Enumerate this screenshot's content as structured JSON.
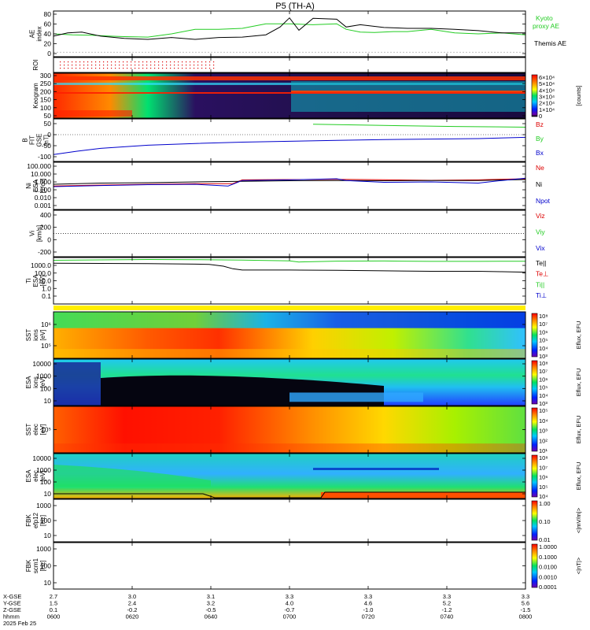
{
  "title": "P5 (TH-A)",
  "colors": {
    "green": "#22cc22",
    "red": "#dd0000",
    "blue": "#0000cc",
    "black": "#000000",
    "yellow": "#ffee00"
  },
  "chart_data": [
    {
      "type": "line",
      "id": "ae",
      "ylabel": "AE index",
      "ylim": [
        -10,
        90
      ],
      "yticks": [
        "80",
        "60",
        "40",
        "20",
        "0"
      ],
      "legend": [
        "Kyoto",
        "proxy AE",
        "Themis AE"
      ],
      "series": [
        {
          "name": "Kyoto proxy AE",
          "color": "#22cc22",
          "x": [
            0,
            0.04,
            0.08,
            0.12,
            0.15,
            0.2,
            0.25,
            0.3,
            0.35,
            0.4,
            0.45,
            0.5,
            0.55,
            0.6,
            0.62,
            0.65,
            0.68,
            0.72,
            0.75,
            0.8,
            0.85,
            0.9,
            0.95,
            1.0
          ],
          "y": [
            40,
            38,
            37,
            35,
            34,
            33,
            40,
            50,
            50,
            52,
            62,
            62,
            60,
            62,
            50,
            44,
            43,
            45,
            45,
            50,
            42,
            40,
            42,
            38
          ]
        },
        {
          "name": "Themis AE",
          "color": "#000000",
          "x": [
            0,
            0.03,
            0.06,
            0.1,
            0.15,
            0.2,
            0.25,
            0.3,
            0.35,
            0.4,
            0.45,
            0.48,
            0.5,
            0.52,
            0.55,
            0.6,
            0.62,
            0.65,
            0.7,
            0.75,
            0.8,
            0.85,
            0.9,
            0.95,
            1.0
          ],
          "y": [
            35,
            42,
            44,
            35,
            30,
            28,
            32,
            28,
            32,
            33,
            38,
            55,
            75,
            48,
            74,
            72,
            55,
            60,
            54,
            52,
            52,
            50,
            47,
            42,
            42
          ]
        }
      ]
    },
    {
      "type": "line",
      "id": "roi",
      "ylabel": "ROI"
    },
    {
      "type": "heatmap",
      "id": "keogram",
      "ylabel": "Keogram",
      "yticks": [
        "300",
        "250",
        "200",
        "150",
        "100",
        "50"
      ],
      "colorbar_ticks": [
        "6×10⁴",
        "5×10⁴",
        "4×10⁴",
        "3×10⁴",
        "2×10⁴",
        "1×10⁴",
        "0"
      ],
      "colorbar_label": "[counts]"
    },
    {
      "type": "line",
      "id": "bfield",
      "ylabel": "B FIT GSE [nT]",
      "yticks": [
        "50",
        "0",
        "-50",
        "-100"
      ],
      "legend": [
        "Bz",
        "By",
        "Bx"
      ],
      "series": [
        {
          "name": "Bz",
          "color": "#dd0000"
        },
        {
          "name": "By",
          "color": "#22cc22",
          "x": [
            0.55,
            0.65,
            0.75,
            0.85,
            1.0
          ],
          "y": [
            47,
            44,
            40,
            37,
            34
          ]
        },
        {
          "name": "Bx",
          "color": "#0000cc",
          "x": [
            0,
            0.05,
            0.1,
            0.2,
            0.3,
            0.4,
            0.5,
            0.6,
            0.7,
            0.8,
            0.9,
            1.0
          ],
          "y": [
            -90,
            -75,
            -62,
            -48,
            -40,
            -34,
            -30,
            -26,
            -22,
            -20,
            -18,
            -12
          ]
        }
      ]
    },
    {
      "type": "line",
      "id": "density",
      "ylabel": "Ni ESA [1/cc]",
      "yticks": [
        "100.000",
        "10.000",
        "1.000",
        "0.100",
        "0.010",
        "0.001"
      ],
      "legend": [
        "Ne",
        "Ni",
        "Npot"
      ],
      "series": [
        {
          "name": "Ne",
          "color": "#dd0000",
          "x": [
            0,
            0.1,
            0.2,
            0.3,
            0.38,
            0.4,
            0.5,
            0.6,
            0.7,
            0.8,
            0.9,
            0.95,
            1.0
          ],
          "y": [
            0.3,
            0.4,
            0.5,
            0.6,
            0.6,
            1.8,
            2.0,
            2.1,
            1.9,
            1.6,
            1.8,
            2.2,
            2.5
          ]
        },
        {
          "name": "Ni",
          "color": "#000000",
          "x": [
            0,
            0.1,
            0.2,
            0.3,
            0.4,
            0.5,
            0.6,
            0.7,
            0.8,
            0.9,
            1.0
          ],
          "y": [
            0.5,
            0.7,
            0.8,
            1.0,
            1.2,
            1.4,
            1.5,
            1.4,
            1.5,
            1.5,
            2.0
          ]
        },
        {
          "name": "Npot",
          "color": "#0000cc",
          "x": [
            0,
            0.1,
            0.2,
            0.3,
            0.37,
            0.4,
            0.5,
            0.6,
            0.62,
            0.7,
            0.8,
            0.9,
            0.95,
            1.0
          ],
          "y": [
            0.25,
            0.35,
            0.45,
            0.5,
            0.3,
            1.5,
            1.8,
            2.5,
            1.5,
            0.9,
            1.0,
            0.7,
            1.5,
            3.0
          ]
        }
      ]
    },
    {
      "type": "line",
      "id": "velocity",
      "ylabel": "Vi [km/s]",
      "yticks": [
        "400",
        "200",
        "0",
        "-200"
      ],
      "legend": [
        "Viz",
        "Viy",
        "Vix"
      ],
      "series": [
        {
          "name": "Viz",
          "color": "#dd0000"
        },
        {
          "name": "Viy",
          "color": "#22cc22"
        },
        {
          "name": "Vix",
          "color": "#0000cc"
        }
      ]
    },
    {
      "type": "line",
      "id": "temperature",
      "ylabel": "Ti ESA [eV]",
      "yticks": [
        "1000.0",
        "100.0",
        "10.0",
        "1.0",
        "0.1"
      ],
      "legend": [
        "Te||",
        "Te⊥",
        "Ti||",
        "Ti⊥"
      ],
      "series": [
        {
          "name": "Te||",
          "color": "#000000",
          "x": [
            0,
            0.2,
            0.3,
            0.33,
            0.36,
            0.38,
            0.4,
            0.5,
            0.6,
            0.7,
            0.8,
            0.9,
            0.95,
            1.0
          ],
          "y": [
            1800,
            1600,
            1400,
            1300,
            800,
            400,
            280,
            280,
            260,
            230,
            200,
            200,
            180,
            160
          ]
        },
        {
          "name": "Ti||",
          "color": "#22cc22",
          "x": [
            0,
            0.1,
            0.2,
            0.3,
            0.4,
            0.5,
            0.52,
            0.6,
            0.7,
            0.8,
            0.9,
            1.0
          ],
          "y": [
            4000,
            4500,
            5000,
            4800,
            4300,
            3500,
            2500,
            3200,
            3300,
            3000,
            3000,
            3100
          ]
        }
      ]
    },
    {
      "type": "heatmap",
      "id": "sst-ion",
      "ylabel": "SST ions [eV]",
      "yticks": [
        "10⁶",
        "10⁵"
      ],
      "colorbar_ticks": [
        "10⁸",
        "10⁷",
        "10⁶",
        "10⁵",
        "10⁴",
        "10³"
      ],
      "colorbar_label": "Eflux, EFU"
    },
    {
      "type": "heatmap",
      "id": "esa-ion",
      "ylabel": "ESA ions [eV]",
      "yticks": [
        "10000",
        "1000",
        "100",
        "10"
      ],
      "colorbar_ticks": [
        "10⁸",
        "10⁷",
        "10⁶",
        "10⁵",
        "10⁴",
        "10³"
      ],
      "colorbar_label": "Eflux, EFU"
    },
    {
      "type": "heatmap",
      "id": "sst-elec",
      "ylabel": "SST elec [eV]",
      "yticks": [
        "10⁵"
      ],
      "colorbar_ticks": [
        "10⁵",
        "10⁴",
        "10³",
        "10²",
        "10¹"
      ],
      "colorbar_label": "Eflux, EFU"
    },
    {
      "type": "heatmap",
      "id": "esa-elec",
      "ylabel": "ESA elec [eV]",
      "yticks": [
        "10000",
        "1000",
        "100",
        "10"
      ],
      "colorbar_ticks": [
        "10⁸",
        "10⁷",
        "10⁶",
        "10⁵",
        "10⁴"
      ],
      "colorbar_label": "Eflux, EFU"
    },
    {
      "type": "heatmap",
      "id": "fbk-e",
      "ylabel": "FBK efp12 [Hz]",
      "yticks": [
        "1000",
        "100",
        "10"
      ],
      "colorbar_ticks": [
        "1.00",
        "0.10",
        "0.01"
      ],
      "colorbar_label": "<|mV/m|>"
    },
    {
      "type": "heatmap",
      "id": "fbk-b",
      "ylabel": "FBK scm1 [Hz]",
      "yticks": [
        "1000",
        "100",
        "10"
      ],
      "colorbar_ticks": [
        "1.0000",
        "0.1000",
        "0.0100",
        "0.0010",
        "0.0001"
      ],
      "colorbar_label": "<|nT|>"
    }
  ],
  "time_axis": {
    "row_labels": [
      "X-GSE",
      "Y-GSE",
      "Z-GSE",
      "hhmm",
      "2025 Feb 25"
    ],
    "columns": [
      {
        "x": "2.7",
        "y": "1.5",
        "z": "0.1",
        "t": "0600"
      },
      {
        "x": "3.0",
        "y": "2.4",
        "z": "-0.2",
        "t": "0620"
      },
      {
        "x": "3.1",
        "y": "3.2",
        "z": "-0.5",
        "t": "0640"
      },
      {
        "x": "3.3",
        "y": "4.0",
        "z": "-0.7",
        "t": "0700"
      },
      {
        "x": "3.3",
        "y": "4.6",
        "z": "-1.0",
        "t": "0720"
      },
      {
        "x": "3.3",
        "y": "5.2",
        "z": "-1.2",
        "t": "0740"
      },
      {
        "x": "3.3",
        "y": "5.6",
        "z": "-1.5",
        "t": "0800"
      }
    ]
  }
}
